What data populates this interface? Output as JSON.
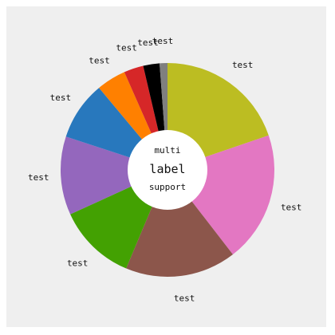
{
  "chart_data": {
    "type": "pie",
    "variant": "donut",
    "center_label": [
      "multi",
      "label",
      "support"
    ],
    "slices": [
      {
        "label": "test",
        "value": 20,
        "color": "#bcbd22"
      },
      {
        "label": "test",
        "value": 20,
        "color": "#e377c2"
      },
      {
        "label": "test",
        "value": 17,
        "color": "#8c564b"
      },
      {
        "label": "test",
        "value": 12,
        "color": "#43a102"
      },
      {
        "label": "test",
        "value": 12,
        "color": "#9467bd"
      },
      {
        "label": "test",
        "value": 9,
        "color": "#2878bd"
      },
      {
        "label": "test",
        "value": 4.5,
        "color": "#ff8000"
      },
      {
        "label": "test",
        "value": 3,
        "color": "#d62728"
      },
      {
        "label": "test",
        "value": 2.5,
        "color": "#000000"
      },
      {
        "label": "test",
        "value": 1.2,
        "color": "#7f7f7f"
      }
    ]
  }
}
